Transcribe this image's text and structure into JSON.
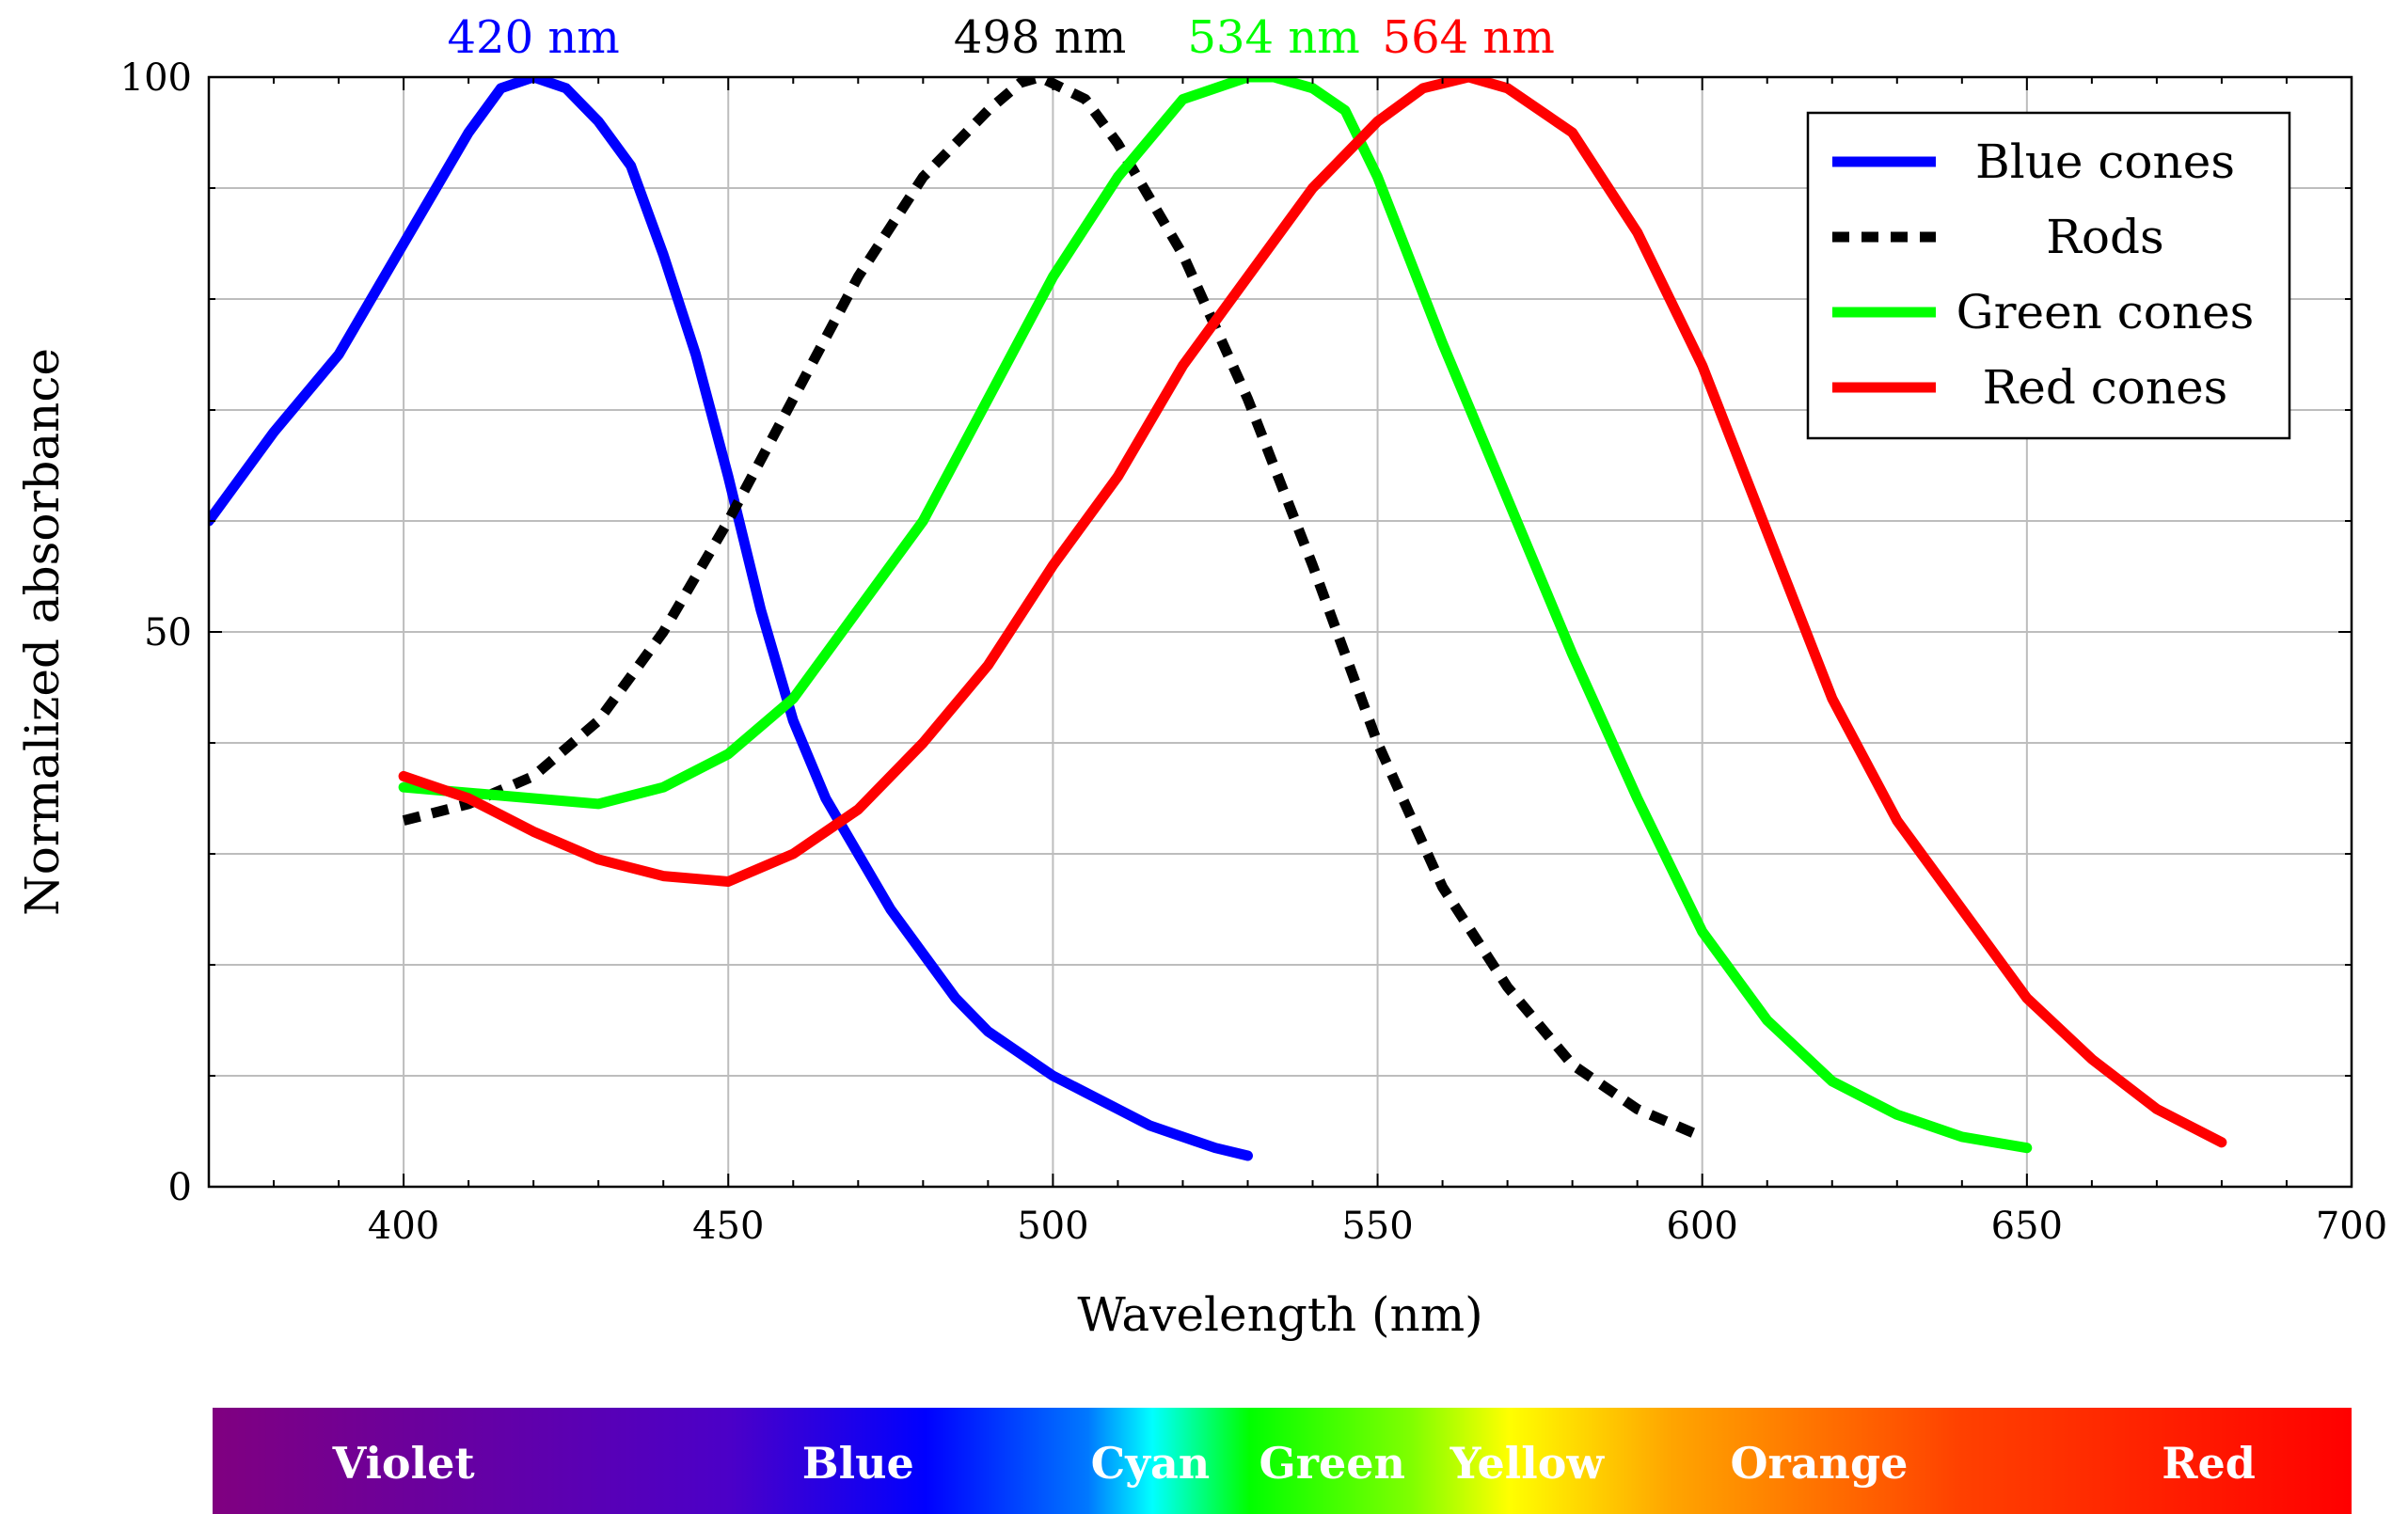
{
  "chart_data": {
    "type": "line",
    "title": "",
    "xlabel": "Wavelength (nm)",
    "ylabel": "Normalized absorbance",
    "xlim": [
      370,
      700
    ],
    "ylim": [
      0,
      100
    ],
    "x_ticks": [
      400,
      450,
      500,
      550,
      600,
      650,
      700
    ],
    "y_ticks": [
      0,
      50,
      100
    ],
    "grid": true,
    "legend_position": "top-right",
    "series": [
      {
        "name": "Blue cones",
        "color": "#0000ff",
        "dash": "solid",
        "x": [
          370,
          380,
          390,
          400,
          410,
          415,
          420,
          425,
          430,
          435,
          440,
          445,
          450,
          455,
          460,
          465,
          470,
          475,
          480,
          485,
          490,
          495,
          500,
          505,
          510,
          515,
          520,
          525,
          530
        ],
        "y": [
          60,
          68,
          75,
          85,
          95,
          99,
          100,
          99,
          96,
          92,
          84,
          75,
          64,
          52,
          42,
          35,
          30,
          25,
          21,
          17,
          14,
          12,
          10,
          8.5,
          7,
          5.5,
          4.5,
          3.5,
          2.8
        ]
      },
      {
        "name": "Rods",
        "color": "#000000",
        "dash": "dashed",
        "x": [
          400,
          410,
          420,
          430,
          440,
          450,
          460,
          470,
          480,
          490,
          495,
          498,
          505,
          510,
          520,
          530,
          540,
          550,
          560,
          570,
          580,
          590,
          600
        ],
        "y": [
          33,
          34.5,
          37,
          42,
          50,
          60,
          71,
          82,
          91,
          97,
          99.5,
          100,
          98,
          94,
          84,
          71,
          56,
          40,
          27,
          18,
          11,
          7,
          4.5
        ]
      },
      {
        "name": "Green cones",
        "color": "#00ff00",
        "dash": "solid",
        "x": [
          400,
          410,
          420,
          430,
          440,
          450,
          460,
          470,
          480,
          490,
          500,
          510,
          520,
          530,
          534,
          540,
          545,
          550,
          560,
          570,
          580,
          590,
          600,
          610,
          620,
          630,
          640,
          650
        ],
        "y": [
          36,
          35.5,
          35,
          34.5,
          36,
          39,
          44,
          52,
          60,
          71,
          82,
          91,
          98,
          100,
          100,
          99,
          97,
          91,
          76,
          62,
          48,
          35,
          23,
          15,
          9.5,
          6.5,
          4.5,
          3.5
        ]
      },
      {
        "name": "Red cones",
        "color": "#ff0000",
        "dash": "solid",
        "x": [
          400,
          410,
          420,
          430,
          440,
          450,
          460,
          470,
          480,
          490,
          500,
          510,
          520,
          530,
          540,
          550,
          557,
          564,
          570,
          580,
          590,
          600,
          610,
          620,
          630,
          640,
          650,
          660,
          670,
          680
        ],
        "y": [
          37,
          35,
          32,
          29.5,
          28,
          27.5,
          30,
          34,
          40,
          47,
          56,
          64,
          74,
          82,
          90,
          96,
          99,
          100,
          99,
          95,
          86,
          74,
          59,
          44,
          33,
          25,
          17,
          11.5,
          7,
          4
        ]
      }
    ],
    "peak_annotations": [
      {
        "label": "420 nm",
        "x": 420,
        "color": "#0000ff"
      },
      {
        "label": "498 nm",
        "x": 498,
        "color": "#000000"
      },
      {
        "label": "534 nm",
        "x": 534,
        "color": "#00ff00"
      },
      {
        "label": "564 nm",
        "x": 564,
        "color": "#ff0000"
      }
    ],
    "spectrum_band": {
      "labels": [
        {
          "text": "Violet",
          "x": 400
        },
        {
          "text": "Blue",
          "x": 470
        },
        {
          "text": "Cyan",
          "x": 515
        },
        {
          "text": "Green",
          "x": 543
        },
        {
          "text": "Yellow",
          "x": 573
        },
        {
          "text": "Orange",
          "x": 618
        },
        {
          "text": "Red",
          "x": 678
        }
      ],
      "stops": [
        {
          "x": 370,
          "color": "#800080"
        },
        {
          "x": 450,
          "color": "#4b00c8"
        },
        {
          "x": 480,
          "color": "#0000ff"
        },
        {
          "x": 505,
          "color": "#0078ff"
        },
        {
          "x": 515,
          "color": "#00ffff"
        },
        {
          "x": 530,
          "color": "#00ff00"
        },
        {
          "x": 555,
          "color": "#80ff00"
        },
        {
          "x": 570,
          "color": "#ffff00"
        },
        {
          "x": 595,
          "color": "#ffa500"
        },
        {
          "x": 640,
          "color": "#ff4000"
        },
        {
          "x": 700,
          "color": "#ff0000"
        }
      ]
    }
  }
}
